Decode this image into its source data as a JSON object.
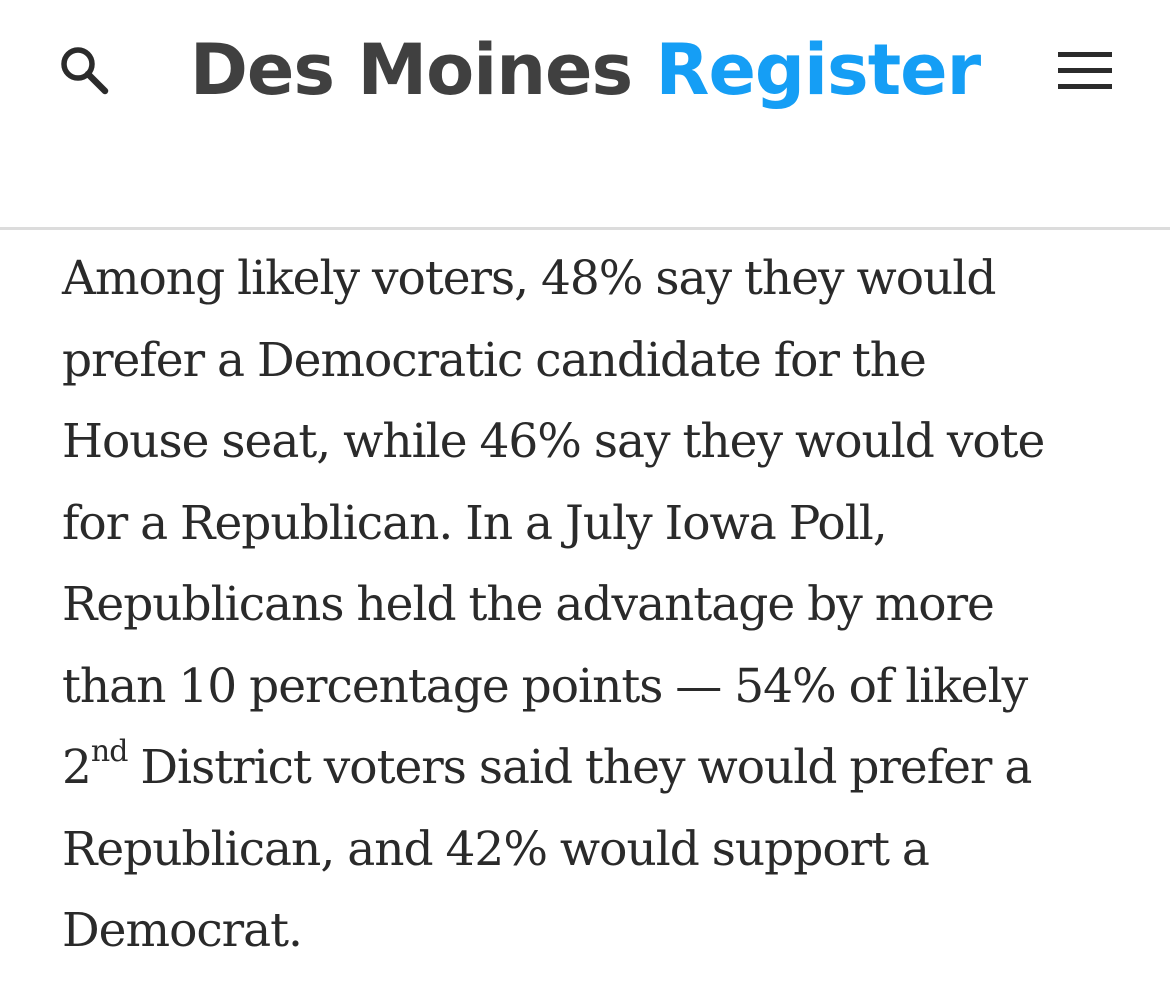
{
  "header": {
    "logo_dark": "Des Moines",
    "logo_blue": "Register",
    "search_icon": "search-icon",
    "menu_icon": "hamburger-menu-icon",
    "colors": {
      "logo_dark": "#404040",
      "logo_blue": "#159ef5",
      "divider": "#dcdcdc"
    }
  },
  "article": {
    "lines": [
      "Among likely voters, 48% say they would",
      "prefer a Democratic candidate for the",
      "House seat, while 46% say they would vote",
      "for a Republican. In a July Iowa Poll,",
      "Republicans held the advantage by more",
      "than 10 percentage points — 54% of likely"
    ],
    "line7_number": "2",
    "line7_superscript": "nd",
    "line7_rest": " District voters said they would prefer a",
    "lines_after": [
      "Republican, and 42% would support a",
      "Democrat."
    ]
  }
}
